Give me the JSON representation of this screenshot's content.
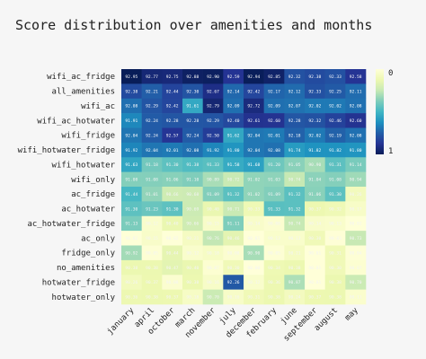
{
  "chart_data": {
    "type": "heatmap",
    "title": "Score distribution over amenities and months",
    "rows": [
      "wifi_ac_fridge",
      "all_amenities",
      "wifi_ac",
      "wifi_ac_hotwater",
      "wifi_fridge",
      "wifi_hotwater_fridge",
      "wifi_hotwater",
      "wifi_only",
      "ac_fridge",
      "ac_hotwater",
      "ac_hotwater_fridge",
      "ac_only",
      "fridge_only",
      "no_amenities",
      "hotwater_fridge",
      "hotwater_only"
    ],
    "columns": [
      "january",
      "april",
      "october",
      "march",
      "november",
      "july",
      "december",
      "february",
      "june",
      "september",
      "august",
      "may"
    ],
    "values": [
      [
        92.95,
        92.77,
        92.75,
        92.88,
        92.9,
        92.59,
        92.94,
        92.85,
        92.32,
        92.38,
        92.33,
        92.58
      ],
      [
        92.38,
        92.21,
        92.44,
        92.3,
        92.67,
        92.14,
        92.42,
        92.17,
        92.12,
        92.33,
        92.25,
        92.11
      ],
      [
        92.08,
        92.29,
        92.42,
        91.61,
        92.79,
        92.09,
        92.72,
        92.09,
        92.07,
        92.02,
        92.02,
        92.08
      ],
      [
        91.91,
        92.24,
        92.28,
        92.28,
        92.29,
        92.4,
        92.61,
        92.6,
        92.28,
        92.32,
        92.46,
        92.6
      ],
      [
        92.04,
        92.24,
        92.57,
        92.24,
        92.5,
        91.62,
        92.04,
        92.01,
        92.18,
        92.02,
        92.19,
        92.08
      ],
      [
        91.92,
        92.04,
        92.01,
        92.08,
        91.92,
        91.8,
        92.04,
        92.08,
        91.74,
        91.82,
        91.82,
        91.8
      ],
      [
        91.63,
        91.18,
        91.3,
        91.38,
        91.33,
        91.58,
        91.68,
        91.2,
        91.05,
        90.9,
        91.31,
        91.14
      ],
      [
        91.08,
        91.08,
        91.06,
        91.1,
        90.89,
        90.72,
        91.02,
        91.03,
        90.74,
        91.04,
        91.08,
        90.94
      ],
      [
        91.44,
        91.01,
        90.66,
        90.68,
        91.09,
        91.32,
        91.02,
        91.09,
        91.32,
        91.06,
        91.3,
        90.26
      ],
      [
        91.3,
        91.23,
        91.3,
        90.69,
        90.4,
        90.71,
        90.33,
        91.33,
        91.32,
        90.37,
        90.32,
        90.17
      ],
      [
        91.13,
        90.12,
        90.4,
        90.66,
        90.15,
        91.11,
        90.14,
        90.08,
        90.74,
        90.14,
        90.13,
        90.02
      ],
      [
        90.02,
        90.15,
        90.02,
        90.21,
        90.76,
        90.46,
        90.01,
        90.13,
        90.13,
        90.3,
        90.03,
        90.73
      ],
      [
        90.92,
        90.05,
        90.44,
        90.12,
        90.18,
        90.08,
        90.9,
        90.05,
        90.21,
        90.01,
        90.31,
        90.04
      ],
      [
        90.38,
        90.38,
        90.47,
        90.4,
        90.07,
        90.3,
        90.0,
        90.34,
        90.38,
        90.01,
        90.3,
        90.07
      ],
      [
        90.26,
        90.37,
        90.08,
        90.38,
        90.16,
        92.26,
        90.12,
        90.36,
        90.87,
        90.01,
        90.38,
        90.7
      ],
      [
        90.36,
        90.38,
        90.37,
        90.18,
        90.7,
        90.16,
        90.31,
        90.38,
        90.24,
        90.37,
        90.38,
        90.11
      ]
    ],
    "colorbar": {
      "min_label": "1",
      "max_label": "0",
      "colorscale": "YlGnBu"
    },
    "grid": false
  }
}
